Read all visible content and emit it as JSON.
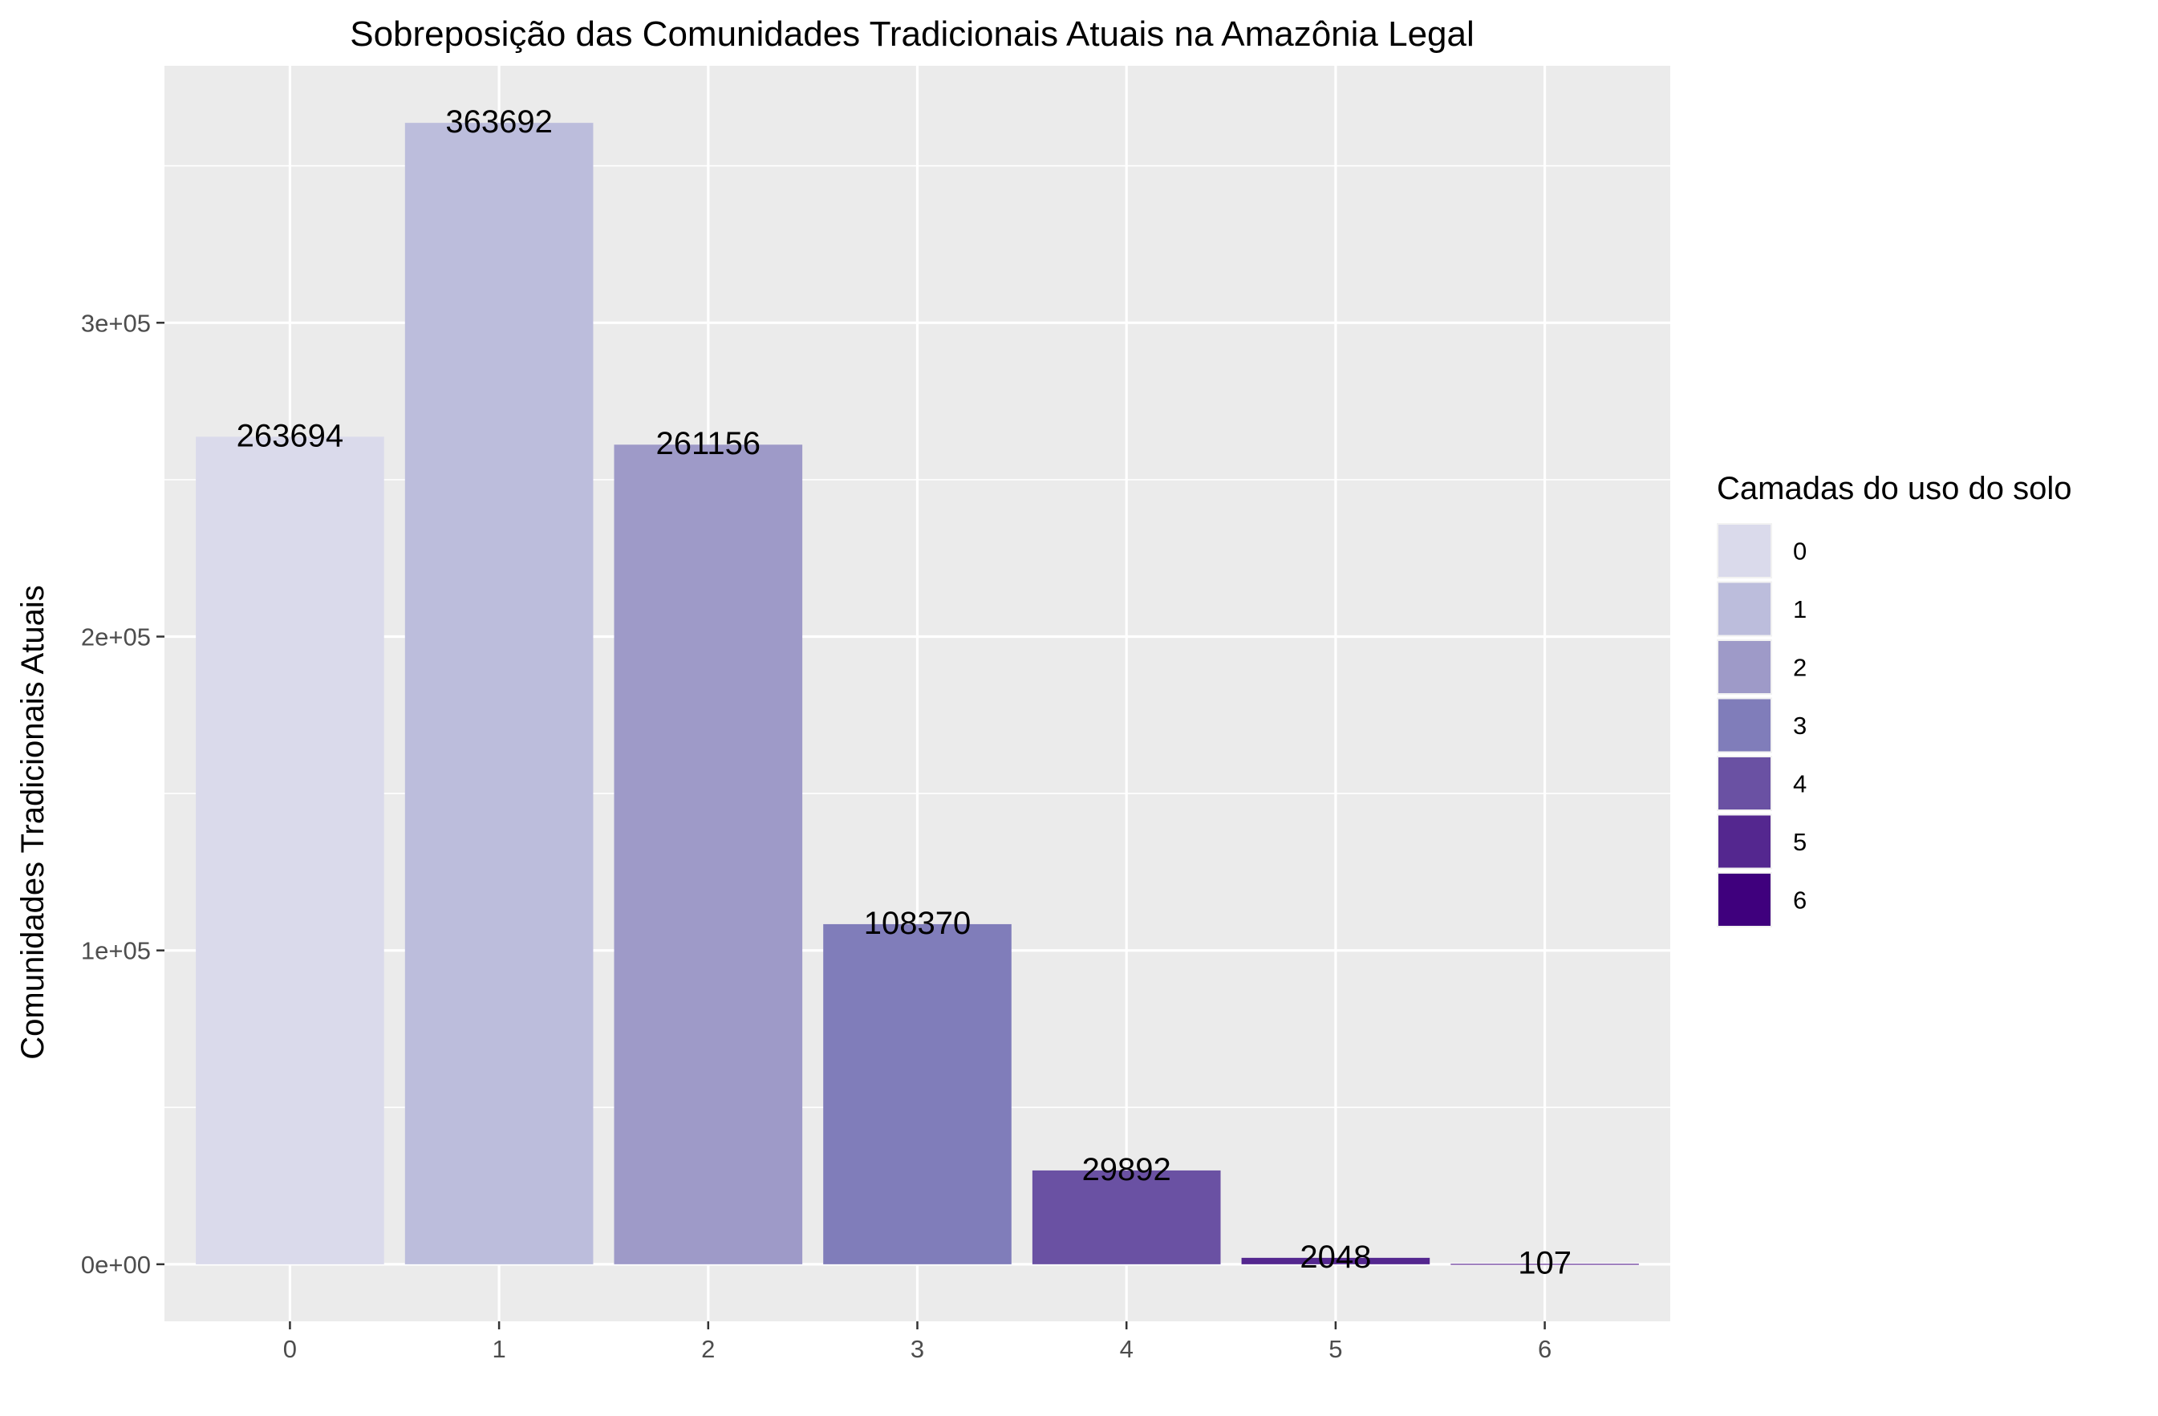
{
  "chart_data": {
    "type": "bar",
    "title": "Sobreposição das Comunidades Tradicionais Atuais na Amazônia Legal",
    "xlabel": "",
    "ylabel": "Comunidades Tradicionais Atuais",
    "categories": [
      "0",
      "1",
      "2",
      "3",
      "4",
      "5",
      "6"
    ],
    "values": [
      263694,
      363692,
      261156,
      108370,
      29892,
      2048,
      107
    ],
    "data_labels": [
      "263694",
      "363692",
      "261156",
      "108370",
      "29892",
      "2048",
      "107"
    ],
    "colors": [
      "#dadaeb",
      "#bcbddc",
      "#9e9ac8",
      "#807dba",
      "#6a51a3",
      "#54278f",
      "#3f007d"
    ],
    "ylim": [
      -18184.6,
      381876.6
    ],
    "y_ticks": [
      0,
      100000,
      200000,
      300000
    ],
    "y_tick_labels": [
      "0e+00",
      "1e+05",
      "2e+05",
      "3e+05"
    ],
    "grid": true,
    "panel_background": "#ebebeb",
    "grid_color": "#ffffff",
    "legend": {
      "title": "Camadas do uso do solo",
      "placement": "right",
      "entries": [
        "0",
        "1",
        "2",
        "3",
        "4",
        "5",
        "6"
      ]
    }
  }
}
